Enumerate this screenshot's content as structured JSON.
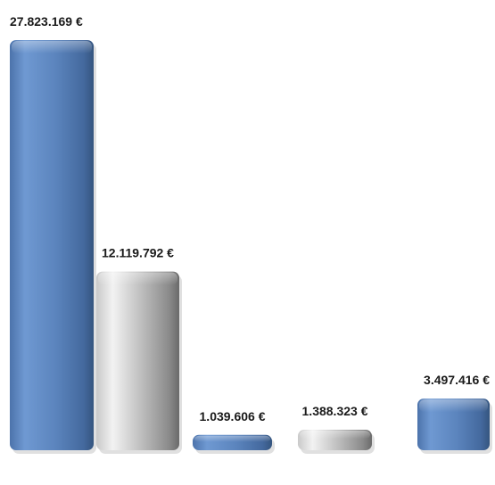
{
  "chart_data": {
    "type": "bar",
    "categories": [
      "",
      "",
      "",
      "",
      ""
    ],
    "values": [
      27823169,
      12119792,
      1039606,
      1388323,
      3497416
    ],
    "data_labels": [
      "27.823.169 €",
      "12.119.792 €",
      "1.039.606 €",
      "1.388.323 €",
      "3.497.416 €"
    ],
    "bar_colors": [
      "#5b84bd",
      "#a7a7a7",
      "#5b84bd",
      "#a7a7a7",
      "#5b84bd"
    ],
    "title": "",
    "xlabel": "",
    "ylabel": "",
    "ylim": [
      0,
      30000000
    ],
    "grid": false,
    "legend": "none",
    "style": "3d-rounded-columns"
  }
}
